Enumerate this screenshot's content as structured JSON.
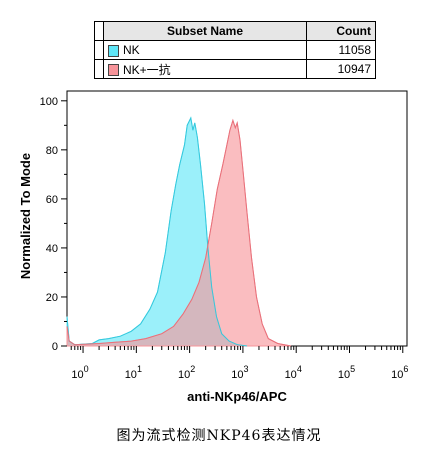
{
  "legend": {
    "header_name": "Subset Name",
    "header_count": "Count",
    "rows": [
      {
        "name": "NK",
        "count": "11058",
        "color": "#5ee6f7"
      },
      {
        "name": "NK+一抗",
        "count": "10947",
        "color": "#f7949a"
      }
    ]
  },
  "caption": "图为流式检测NKP46表达情况",
  "chart_data": {
    "type": "area",
    "xlabel": "anti-NKp46/APC",
    "ylabel": "Normalized To Mode",
    "x_scale": "log",
    "xlim": [
      0.5,
      1200000
    ],
    "ylim": [
      0,
      104
    ],
    "x_ticks": [
      1,
      10,
      100,
      1000,
      10000,
      100000,
      1000000
    ],
    "x_tick_labels": [
      {
        "base": "10",
        "exp": "0"
      },
      {
        "base": "10",
        "exp": "1"
      },
      {
        "base": "10",
        "exp": "2"
      },
      {
        "base": "10",
        "exp": "3"
      },
      {
        "base": "10",
        "exp": "4"
      },
      {
        "base": "10",
        "exp": "5"
      },
      {
        "base": "10",
        "exp": "6"
      }
    ],
    "y_ticks": [
      0,
      20,
      40,
      60,
      80,
      100
    ],
    "y_tick_labels": [
      "0",
      "20",
      "40",
      "60",
      "80",
      "100"
    ],
    "series": [
      {
        "name": "NK",
        "color": "#5ee6f7",
        "points": [
          [
            0.5,
            12
          ],
          [
            0.55,
            2
          ],
          [
            0.7,
            0.5
          ],
          [
            1.5,
            1
          ],
          [
            2,
            2.5
          ],
          [
            3,
            3
          ],
          [
            5,
            4
          ],
          [
            8,
            6
          ],
          [
            12,
            9
          ],
          [
            18,
            15
          ],
          [
            25,
            22
          ],
          [
            35,
            38
          ],
          [
            45,
            55
          ],
          [
            55,
            66
          ],
          [
            65,
            74
          ],
          [
            80,
            82
          ],
          [
            90,
            90
          ],
          [
            105,
            93
          ],
          [
            115,
            88
          ],
          [
            125,
            91
          ],
          [
            140,
            85
          ],
          [
            160,
            74
          ],
          [
            190,
            58
          ],
          [
            220,
            40
          ],
          [
            260,
            24
          ],
          [
            320,
            12
          ],
          [
            400,
            5
          ],
          [
            550,
            2
          ],
          [
            800,
            0.5
          ],
          [
            1200,
            0
          ]
        ]
      },
      {
        "name": "NK+一抗",
        "color": "#f7949a",
        "points": [
          [
            0.5,
            8
          ],
          [
            0.55,
            2
          ],
          [
            0.7,
            0.5
          ],
          [
            2,
            1
          ],
          [
            4,
            1.5
          ],
          [
            8,
            2
          ],
          [
            15,
            3
          ],
          [
            30,
            5
          ],
          [
            50,
            8
          ],
          [
            75,
            13
          ],
          [
            110,
            19
          ],
          [
            150,
            26
          ],
          [
            200,
            36
          ],
          [
            260,
            50
          ],
          [
            330,
            64
          ],
          [
            420,
            74
          ],
          [
            500,
            82
          ],
          [
            570,
            88
          ],
          [
            650,
            92
          ],
          [
            720,
            89
          ],
          [
            780,
            91
          ],
          [
            880,
            84
          ],
          [
            1000,
            72
          ],
          [
            1200,
            54
          ],
          [
            1450,
            36
          ],
          [
            1800,
            20
          ],
          [
            2300,
            9
          ],
          [
            3000,
            3
          ],
          [
            4500,
            1
          ],
          [
            8000,
            0
          ]
        ]
      }
    ],
    "grid": false
  }
}
